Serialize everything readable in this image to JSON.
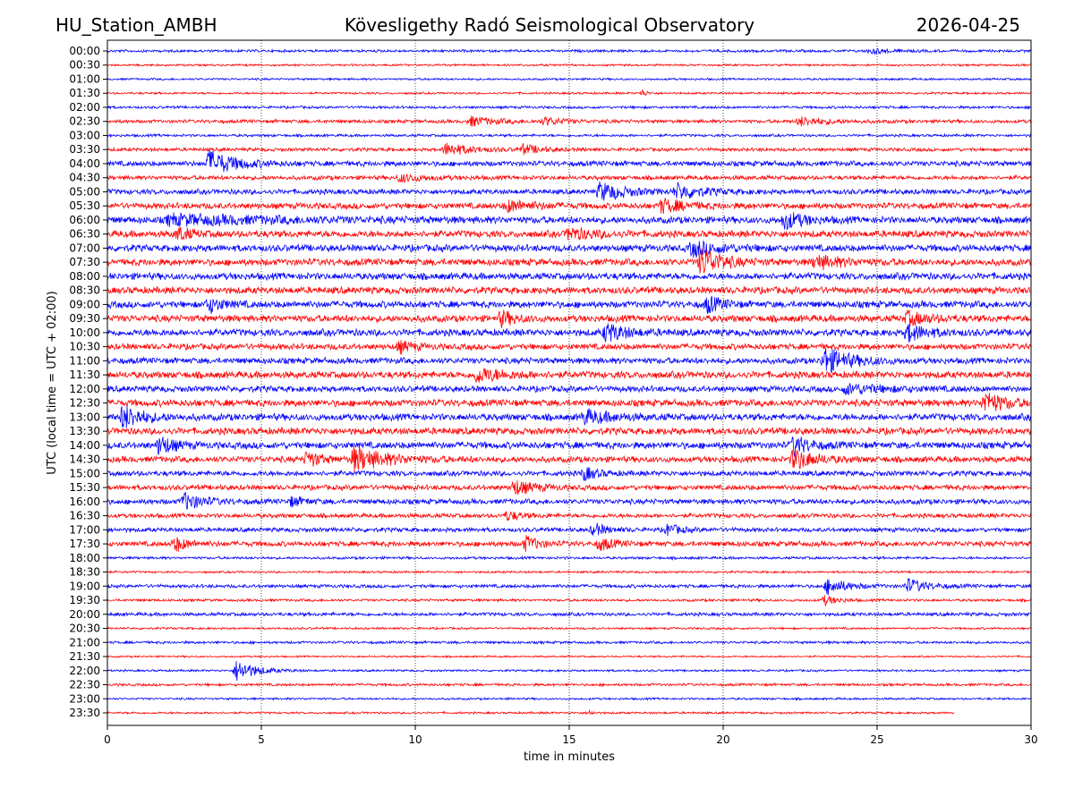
{
  "header": {
    "station": "HU_Station_AMBH",
    "observatory": "Kövesligethy Radó Seismological Observatory",
    "date": "2026-04-25"
  },
  "chart_data": {
    "type": "line",
    "title": "Kövesligethy Radó Seismological Observatory",
    "xlabel": "time in minutes",
    "ylabel": "UTC (local time = UTC + 02:00)",
    "xlim": [
      0,
      30
    ],
    "x_ticks": [
      "0",
      "5",
      "10",
      "15",
      "20",
      "25",
      "30"
    ],
    "x_tick_values": [
      0,
      5,
      10,
      15,
      20,
      25,
      30
    ],
    "grid": "vertical dotted at x ticks",
    "colors": [
      "#0000ff",
      "#ff0000"
    ],
    "data_end_minute": 27.5,
    "rows": [
      "00:00",
      "00:30",
      "01:00",
      "01:30",
      "02:00",
      "02:30",
      "03:00",
      "03:30",
      "04:00",
      "04:30",
      "05:00",
      "05:30",
      "06:00",
      "06:30",
      "07:00",
      "07:30",
      "08:00",
      "08:30",
      "09:00",
      "09:30",
      "10:00",
      "10:30",
      "11:00",
      "11:30",
      "12:00",
      "12:30",
      "13:00",
      "13:30",
      "14:00",
      "14:30",
      "15:00",
      "15:30",
      "16:00",
      "16:30",
      "17:00",
      "17:30",
      "18:00",
      "18:30",
      "19:00",
      "19:30",
      "20:00",
      "20:30",
      "21:00",
      "21:30",
      "22:00",
      "22:30",
      "23:00",
      "23:30"
    ],
    "noise_level": [
      1.5,
      1.2,
      1.2,
      1.2,
      1.5,
      2,
      1.5,
      2,
      3,
      2.5,
      3,
      3.5,
      4,
      4,
      4,
      4,
      4,
      4,
      4,
      4,
      4,
      3.5,
      3.5,
      4,
      3.5,
      4,
      4,
      4,
      4,
      3.5,
      3,
      3,
      3,
      2.5,
      2.5,
      3,
      1.5,
      1.2,
      2,
      1.5,
      2,
      1.2,
      1.5,
      1,
      1.2,
      1.5,
      1.2,
      1.2
    ],
    "events_note": "row index, start minute, duration minutes, relative amplitude",
    "events": [
      [
        0,
        24.8,
        1.5,
        3
      ],
      [
        3,
        17.4,
        0.3,
        4
      ],
      [
        5,
        11.8,
        2,
        5
      ],
      [
        5,
        14.2,
        1.5,
        4
      ],
      [
        5,
        22.5,
        2,
        5
      ],
      [
        7,
        11,
        2,
        7
      ],
      [
        7,
        13.5,
        1.5,
        5
      ],
      [
        8,
        3.3,
        2,
        14
      ],
      [
        9,
        9.5,
        2,
        4
      ],
      [
        10,
        16,
        2,
        10
      ],
      [
        10,
        18.5,
        2,
        8
      ],
      [
        11,
        13,
        2,
        6
      ],
      [
        11,
        18,
        2,
        7
      ],
      [
        12,
        2,
        8,
        5
      ],
      [
        12,
        22,
        1.5,
        9
      ],
      [
        13,
        2.3,
        1,
        7
      ],
      [
        13,
        15,
        2,
        6
      ],
      [
        14,
        19,
        2,
        8
      ],
      [
        15,
        19.3,
        1.5,
        16
      ],
      [
        15,
        23,
        2,
        7
      ],
      [
        18,
        3.3,
        1,
        8
      ],
      [
        18,
        19.5,
        1,
        9
      ],
      [
        19,
        12.8,
        1,
        8
      ],
      [
        19,
        26,
        1.5,
        7
      ],
      [
        20,
        16.2,
        1.5,
        10
      ],
      [
        20,
        26,
        1.5,
        9
      ],
      [
        21,
        9.5,
        1,
        6
      ],
      [
        22,
        23.3,
        2,
        14
      ],
      [
        23,
        12,
        2,
        8
      ],
      [
        24,
        24,
        3,
        5
      ],
      [
        25,
        28.5,
        1.5,
        12
      ],
      [
        26,
        0.5,
        1.5,
        13
      ],
      [
        26,
        15.5,
        2,
        7
      ],
      [
        28,
        1.7,
        1,
        11
      ],
      [
        28,
        22.3,
        1.2,
        10
      ],
      [
        29,
        8,
        2.5,
        13
      ],
      [
        29,
        22.3,
        1.5,
        12
      ],
      [
        29,
        6.5,
        1,
        9
      ],
      [
        30,
        15.5,
        1,
        7
      ],
      [
        31,
        13.2,
        1.5,
        8
      ],
      [
        32,
        2.5,
        1.5,
        9
      ],
      [
        32,
        6,
        1,
        5
      ],
      [
        33,
        13,
        1,
        5
      ],
      [
        34,
        15.8,
        1,
        7
      ],
      [
        34,
        18.2,
        1,
        6
      ],
      [
        35,
        2.2,
        1,
        8
      ],
      [
        35,
        13.6,
        1,
        8
      ],
      [
        35,
        16,
        1,
        7
      ],
      [
        38,
        23.4,
        1.5,
        9
      ],
      [
        38,
        26,
        1.5,
        8
      ],
      [
        39,
        23.3,
        1,
        5
      ],
      [
        44,
        4.2,
        1.5,
        12
      ],
      [
        47,
        15.7,
        0.2,
        3
      ]
    ]
  }
}
